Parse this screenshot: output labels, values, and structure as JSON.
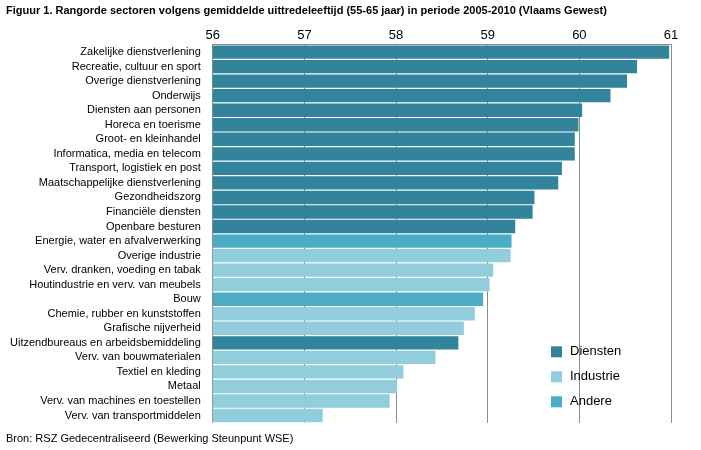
{
  "chart_data": {
    "type": "bar",
    "orientation": "horizontal",
    "title": "Figuur 1. Rangorde sectoren volgens gemiddelde uittredeleeftijd (55-65 jaar) in periode 2005-2010 (Vlaams Gewest)",
    "annotations": [
      "Bron: RSZ Gedecentraliseerd (Bewerking Steunpunt WSE)"
    ],
    "categories": [
      "Zakelijke dienstverlening",
      "Recreatie, cultuur en sport",
      "Overige dienstverlening",
      "Onderwijs",
      "Diensten aan personen",
      "Horeca en toerisme",
      "Groot- en kleinhandel",
      "Informatica, media en telecom",
      "Transport, logistiek en post",
      "Maatschappelijke dienstverlening",
      "Gezondheidszorg",
      "Financiële diensten",
      "Openbare besturen",
      "Energie, water en afvalverwerking",
      "Overige industrie",
      "Verv. dranken, voeding en tabak",
      "Houtindustrie en verv. van meubels",
      "Bouw",
      "Chemie, rubber en kunststoffen",
      "Grafische nijverheid",
      "Uitzendbureaus en arbeidsbemiddeling",
      "Verv. van bouwmaterialen",
      "Textiel en kleding",
      "Metaal",
      "Verv. van machines en toestellen",
      "Verv. van transportmiddelen"
    ],
    "series": [
      {
        "name": "Diensten",
        "color": "#31849b",
        "values": [
          60.98,
          60.63,
          60.52,
          60.34,
          60.03,
          59.99,
          59.95,
          59.95,
          59.81,
          59.77,
          59.51,
          59.49,
          59.3,
          null,
          null,
          null,
          null,
          null,
          null,
          null,
          58.68,
          null,
          null,
          null,
          null,
          null
        ]
      },
      {
        "name": "Industrie",
        "color": "#92cddc",
        "values": [
          null,
          null,
          null,
          null,
          null,
          null,
          null,
          null,
          null,
          null,
          null,
          null,
          null,
          null,
          59.25,
          59.06,
          59.02,
          null,
          58.86,
          58.74,
          null,
          58.43,
          58.08,
          58.01,
          57.93,
          57.2
        ]
      },
      {
        "name": "Andere",
        "color": "#4bacc6",
        "values": [
          null,
          null,
          null,
          null,
          null,
          null,
          null,
          null,
          null,
          null,
          null,
          null,
          null,
          59.26,
          null,
          null,
          null,
          58.95,
          null,
          null,
          null,
          null,
          null,
          null,
          null,
          null
        ]
      }
    ],
    "xlim": [
      56,
      61
    ],
    "xticks": [
      56,
      57,
      58,
      59,
      60,
      61
    ],
    "grid": true,
    "legend": "lower right"
  }
}
